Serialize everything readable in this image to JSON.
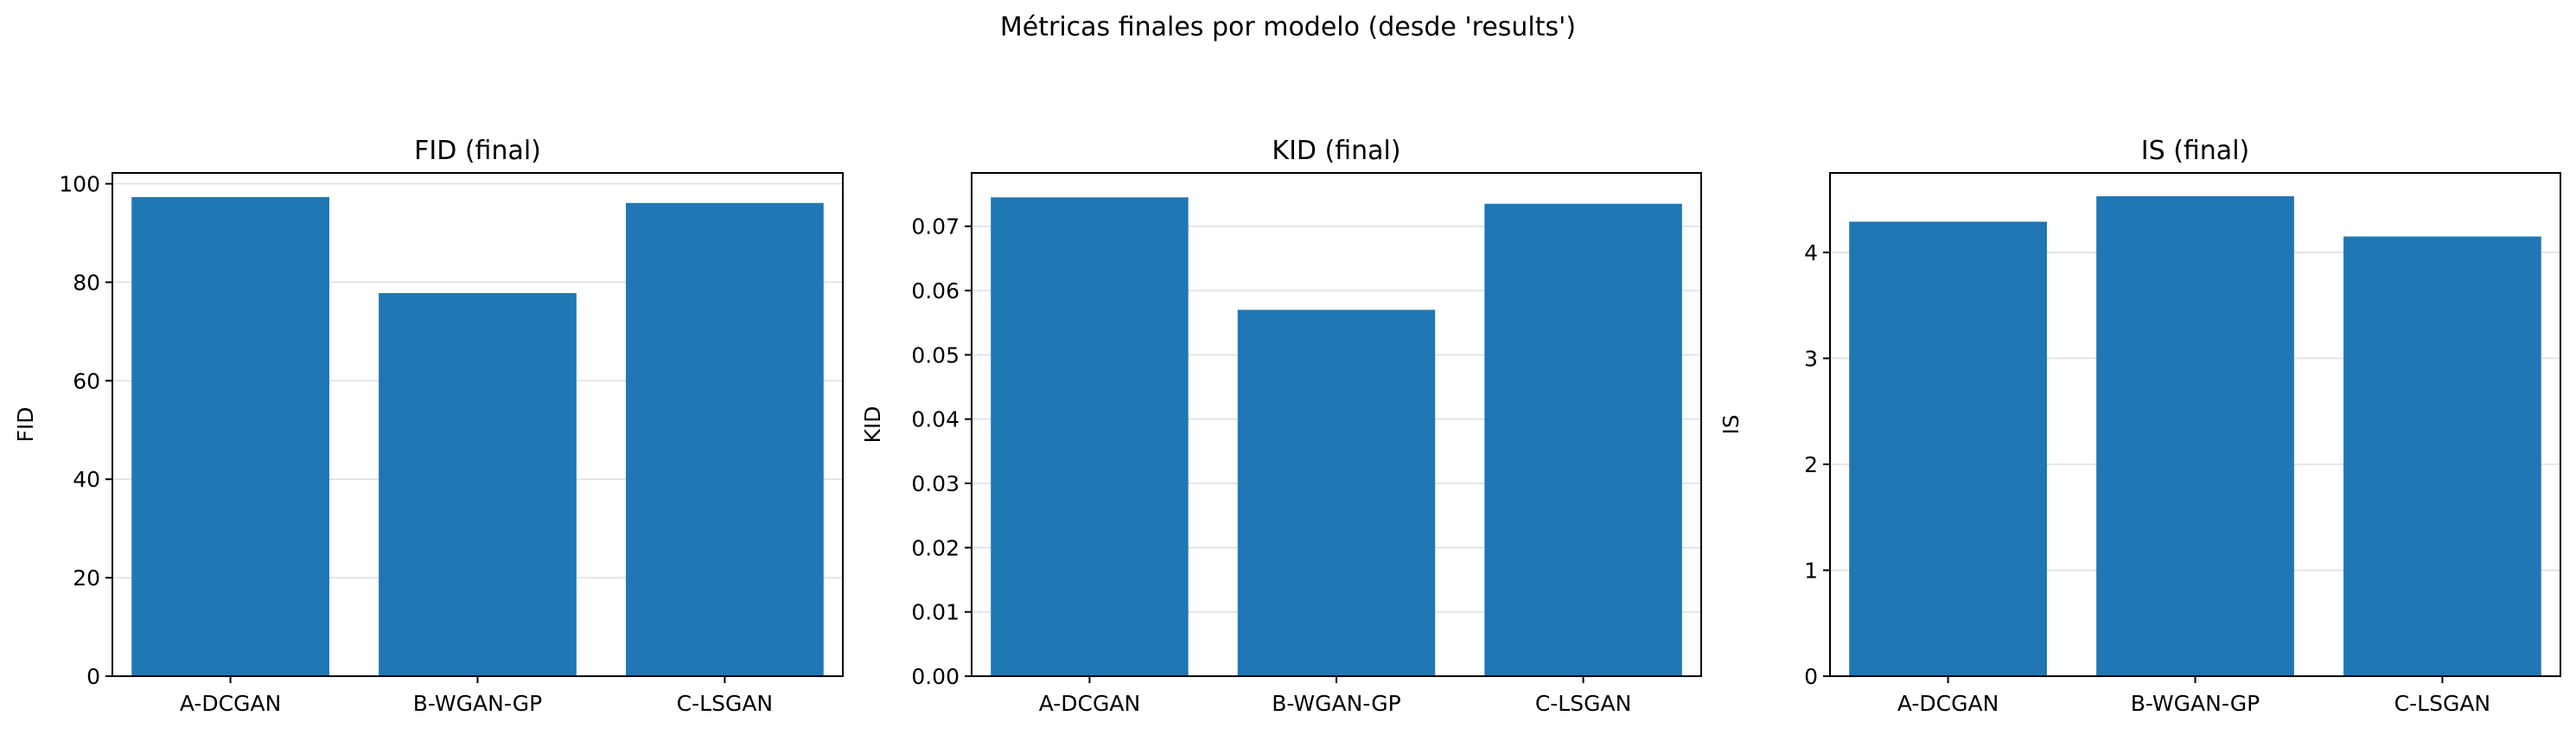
{
  "suptitle": "Métricas finales por modelo (desde 'results')",
  "bar_color": "#1f77b4",
  "grid_color": "#dddddd",
  "chart_data": [
    {
      "type": "bar",
      "title": "FID (final)",
      "ylabel": "FID",
      "xlabel": "",
      "categories": [
        "A-DCGAN",
        "B-WGAN-GP",
        "C-LSGAN"
      ],
      "values": [
        97.3,
        77.8,
        96.1
      ],
      "ylim": [
        0,
        102.2
      ],
      "yticks": [
        0,
        20,
        40,
        60,
        80,
        100
      ],
      "ytick_labels": [
        "0",
        "20",
        "40",
        "60",
        "80",
        "100"
      ],
      "grid": "y"
    },
    {
      "type": "bar",
      "title": "KID (final)",
      "ylabel": "KID",
      "xlabel": "",
      "categories": [
        "A-DCGAN",
        "B-WGAN-GP",
        "C-LSGAN"
      ],
      "values": [
        0.0745,
        0.057,
        0.0735
      ],
      "ylim": [
        0,
        0.0783
      ],
      "yticks": [
        0,
        0.01,
        0.02,
        0.03,
        0.04,
        0.05,
        0.06,
        0.07
      ],
      "ytick_labels": [
        "0.00",
        "0.01",
        "0.02",
        "0.03",
        "0.04",
        "0.05",
        "0.06",
        "0.07"
      ],
      "grid": "y"
    },
    {
      "type": "bar",
      "title": "IS (final)",
      "ylabel": "IS",
      "xlabel": "",
      "categories": [
        "A-DCGAN",
        "B-WGAN-GP",
        "C-LSGAN"
      ],
      "values": [
        4.29,
        4.53,
        4.15
      ],
      "ylim": [
        0,
        4.75
      ],
      "yticks": [
        0,
        1,
        2,
        3,
        4
      ],
      "ytick_labels": [
        "0",
        "1",
        "2",
        "3",
        "4"
      ],
      "grid": "y"
    }
  ]
}
